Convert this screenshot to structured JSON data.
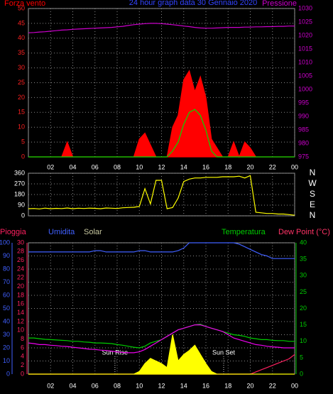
{
  "chart_data": [
    {
      "type": "line",
      "title": "24 hour graph data  30 Gennaio 2020",
      "x": [
        0,
        0.5,
        1,
        1.5,
        2,
        2.5,
        3,
        3.5,
        4,
        4.5,
        5,
        5.5,
        6,
        6.5,
        7,
        7.5,
        8,
        8.5,
        9,
        9.5,
        10,
        10.5,
        11,
        11.5,
        12,
        12.5,
        13,
        13.5,
        14,
        14.5,
        15,
        15.5,
        16,
        16.5,
        17,
        17.5,
        18,
        18.5,
        19,
        19.5,
        20,
        20.5,
        21,
        21.5,
        22,
        22.5,
        23,
        23.5,
        24
      ],
      "xlim": [
        0,
        24
      ],
      "xticks": [
        {
          "value": 2,
          "label": "02"
        },
        {
          "value": 4,
          "label": "04"
        },
        {
          "value": 6,
          "label": "06"
        },
        {
          "value": 8,
          "label": "08"
        },
        10,
        12,
        14,
        16,
        18,
        20,
        22,
        {
          "value": 24,
          "label": "00"
        }
      ],
      "ylim": [
        0,
        50
      ],
      "yticks": [
        0,
        5,
        10,
        15,
        20,
        25,
        30,
        35,
        40,
        45,
        50
      ],
      "ycolor": "#ff2020",
      "y2lim": [
        975,
        1030
      ],
      "y2ticks": [
        975,
        980,
        985,
        990,
        995,
        1000,
        1005,
        1010,
        1015,
        1020,
        1025,
        1030
      ],
      "y2color": "#cc00cc",
      "grid": true,
      "series": [
        {
          "name": "Forza vento",
          "color": "#ff0000",
          "fill": true,
          "values": [
            0,
            0,
            0,
            0,
            0,
            0,
            0,
            5,
            0,
            0,
            0,
            0,
            0,
            0,
            0,
            0,
            0,
            0,
            0,
            0,
            6,
            8,
            4,
            0,
            0,
            0,
            10,
            14,
            26,
            29,
            22,
            27,
            20,
            6,
            3,
            0,
            0,
            5,
            0,
            5,
            3,
            0,
            0,
            0,
            0,
            0,
            0,
            0,
            0
          ]
        },
        {
          "color": "#00dd00",
          "values": [
            0,
            0,
            0,
            0,
            0,
            0,
            0,
            0,
            0,
            0,
            0,
            0,
            0,
            0,
            0,
            0,
            0,
            0,
            0,
            0,
            0,
            0,
            0,
            0,
            0,
            0,
            2,
            5,
            11,
            15,
            16,
            14,
            9,
            2,
            0,
            0,
            0,
            0,
            0,
            0,
            0,
            0,
            0,
            0,
            0,
            0,
            0,
            0,
            0
          ]
        },
        {
          "name": "Pressione",
          "color": "#cc00cc",
          "axis": "y2",
          "values": [
            1021,
            1021.1,
            1021.3,
            1021.4,
            1021.6,
            1021.8,
            1022,
            1022.1,
            1022.3,
            1022.4,
            1022.5,
            1022.6,
            1022.7,
            1022.8,
            1022.9,
            1023,
            1023.2,
            1023.4,
            1023.7,
            1024,
            1024.2,
            1024.4,
            1024.5,
            1024.5,
            1024.4,
            1024.2,
            1024,
            1023.8,
            1023.5,
            1023.3,
            1023,
            1022.8,
            1022.7,
            1022.7,
            1022.8,
            1022.9,
            1023,
            1023,
            1023,
            1023.1,
            1023.1,
            1023.2,
            1023.2,
            1023.3,
            1023.3,
            1023.4,
            1023.4,
            1023.5,
            1023.5
          ]
        }
      ]
    },
    {
      "type": "line",
      "x": [
        0,
        0.5,
        1,
        1.5,
        2,
        2.5,
        3,
        3.5,
        4,
        4.5,
        5,
        5.5,
        6,
        6.5,
        7,
        7.5,
        8,
        8.5,
        9,
        9.5,
        10,
        10.5,
        11,
        11.5,
        12,
        12.5,
        13,
        13.5,
        14,
        14.5,
        15,
        15.5,
        16,
        16.5,
        17,
        17.5,
        18,
        18.5,
        19,
        19.5,
        20,
        20.5,
        21,
        21.5,
        22,
        22.5,
        23,
        23.5,
        24
      ],
      "xlim": [
        0,
        24
      ],
      "xticks": [
        2,
        4,
        6,
        8,
        10,
        12,
        14,
        16,
        18,
        20,
        22,
        24
      ],
      "ylim": [
        0,
        360
      ],
      "yticks": [
        0,
        90,
        180,
        270,
        360
      ],
      "ycolor": "#ffffff",
      "y2lim": [
        0,
        360
      ],
      "y2ticks": [
        {
          "value": 0,
          "label": "N"
        },
        {
          "value": 90,
          "label": "E"
        },
        {
          "value": 180,
          "label": "S"
        },
        {
          "value": 270,
          "label": "W"
        },
        {
          "value": 360,
          "label": "N"
        }
      ],
      "y2color": "#ffffff",
      "grid": true,
      "series": [
        {
          "color": "#ffff00",
          "values": [
            60,
            62,
            58,
            65,
            60,
            63,
            61,
            66,
            60,
            64,
            62,
            65,
            63,
            60,
            66,
            64,
            62,
            68,
            70,
            72,
            80,
            230,
            100,
            300,
            300,
            60,
            70,
            150,
            290,
            310,
            320,
            320,
            325,
            325,
            325,
            330,
            330,
            330,
            335,
            320,
            340,
            30,
            25,
            20,
            20,
            15,
            15,
            10,
            5
          ]
        }
      ]
    },
    {
      "type": "line",
      "x": [
        0,
        0.5,
        1,
        1.5,
        2,
        2.5,
        3,
        3.5,
        4,
        4.5,
        5,
        5.5,
        6,
        6.5,
        7,
        7.5,
        8,
        8.5,
        9,
        9.5,
        10,
        10.5,
        11,
        11.5,
        12,
        12.5,
        13,
        13.5,
        14,
        14.5,
        15,
        15.5,
        16,
        16.5,
        17,
        17.5,
        18,
        18.5,
        19,
        19.5,
        20,
        20.5,
        21,
        21.5,
        22,
        22.5,
        23,
        23.5,
        24
      ],
      "xlim": [
        0,
        24
      ],
      "xticks": [
        {
          "value": 2,
          "label": "02"
        },
        {
          "value": 4,
          "label": "04"
        },
        {
          "value": 6,
          "label": "06"
        },
        {
          "value": 8,
          "label": "08"
        },
        10,
        12,
        14,
        16,
        18,
        20,
        22,
        {
          "value": 24,
          "label": "00"
        }
      ],
      "ylim": [
        0,
        100
      ],
      "yticks": [
        0,
        10,
        20,
        30,
        40,
        50,
        60,
        70,
        80,
        90,
        100
      ],
      "ycolor": "#4060ff",
      "y3lim": [
        0,
        30
      ],
      "y3ticks": [
        0,
        2,
        4,
        6,
        8,
        10,
        12,
        14,
        16,
        18,
        20,
        22,
        24,
        26,
        28,
        30
      ],
      "y3color": "#ff2060",
      "y2lim": [
        0,
        40
      ],
      "y2ticks": [
        0,
        5,
        10,
        15,
        20,
        25,
        30,
        35,
        40
      ],
      "y2color": "#00cc00",
      "grid": true,
      "annotations": [
        {
          "text": "Sun Rise",
          "x": 7.8
        },
        {
          "text": "Sun Set",
          "x": 17.6
        }
      ],
      "series": [
        {
          "name": "Pioggia",
          "color": "#ff2060",
          "axis": "y3",
          "values": [
            0,
            0,
            0,
            0,
            0,
            0,
            0,
            0,
            0,
            0,
            0,
            0,
            0,
            0,
            0,
            0,
            0,
            0,
            0,
            0,
            0,
            0,
            0,
            0,
            0,
            0,
            0,
            0,
            0,
            0,
            0,
            0,
            0,
            0,
            0,
            0,
            0,
            0,
            0,
            0,
            0,
            0.5,
            1,
            1.5,
            2,
            2.5,
            3,
            3.5,
            4.5
          ]
        },
        {
          "name": "Umidita",
          "color": "#4060ff",
          "values": [
            93,
            93,
            93,
            93,
            93,
            93,
            93,
            93,
            93,
            93,
            93,
            93,
            94,
            94,
            93,
            93,
            93,
            93,
            93,
            93,
            94,
            94,
            93,
            93,
            93,
            93,
            93,
            94,
            96,
            100,
            100,
            100,
            100,
            100,
            100,
            100,
            100,
            100,
            99,
            97,
            95,
            93,
            91,
            90,
            88,
            88,
            88,
            88,
            88
          ]
        },
        {
          "name": "Solar",
          "color": "#ffff00",
          "legend_color": "#c8c8a0",
          "fill": true,
          "values": [
            0,
            0,
            0,
            0,
            0,
            0,
            0,
            0,
            0,
            0,
            0,
            0,
            0,
            0,
            0,
            0,
            0,
            0,
            0,
            0,
            2,
            8,
            12,
            10,
            8,
            5,
            30,
            10,
            15,
            18,
            22,
            15,
            8,
            2,
            0,
            0,
            0,
            0,
            0,
            0,
            0,
            0,
            0,
            0,
            0,
            0,
            0,
            0,
            0
          ]
        },
        {
          "name": "Temperatura",
          "color": "#00cc00",
          "axis": "y2",
          "values": [
            11,
            11,
            10.8,
            10.6,
            10.5,
            10.4,
            10.3,
            10.2,
            10,
            10,
            9.8,
            9.7,
            9.5,
            9.5,
            9.4,
            9.3,
            9,
            8.8,
            8.5,
            8.2,
            8,
            8.5,
            9.5,
            10,
            10.5,
            11.5,
            12.5,
            13.5,
            14,
            14.5,
            15,
            15.2,
            14.5,
            14,
            13.5,
            13,
            12.5,
            12,
            11.8,
            11.5,
            11,
            10.8,
            10.5,
            10.5,
            10.3,
            10.2,
            10.2,
            10,
            10
          ]
        },
        {
          "name": "Dew Point (°C)",
          "color": "#ee00ee",
          "legend_color": "#ff3366",
          "axis": "y2",
          "values": [
            9.5,
            9.3,
            9,
            9,
            8.8,
            8.7,
            8.5,
            8.4,
            8.2,
            8,
            7.8,
            7.6,
            7.5,
            7.3,
            7.2,
            7,
            6.8,
            6.6,
            6.5,
            6.5,
            6.8,
            7.5,
            8.5,
            9.5,
            10.5,
            11.5,
            12.5,
            13.5,
            14,
            14.5,
            15,
            15,
            14.5,
            14,
            13.5,
            13,
            12,
            11,
            10.5,
            10,
            9.5,
            9,
            8.8,
            8.5,
            8.3,
            8.2,
            8,
            8,
            8
          ]
        }
      ]
    }
  ]
}
